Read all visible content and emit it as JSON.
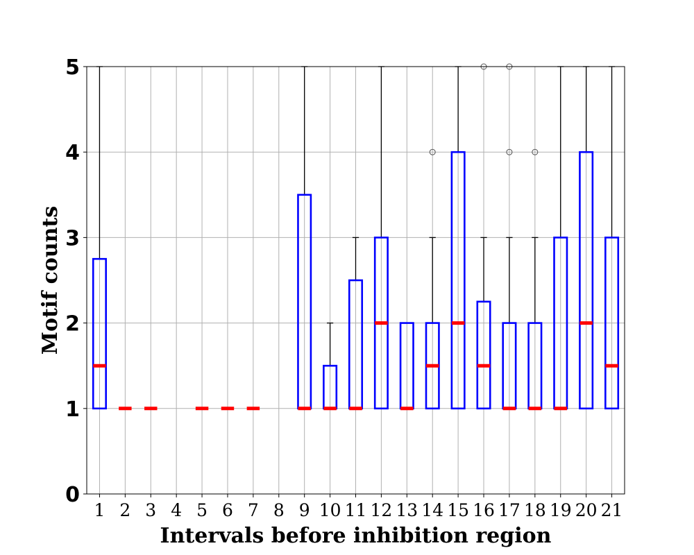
{
  "chart_data": {
    "type": "boxplot",
    "title": "",
    "xlabel": "Intervals before inhibition region",
    "ylabel": "Motif counts",
    "ylim": [
      0,
      5
    ],
    "yticks": [
      0,
      1,
      2,
      3,
      4,
      5
    ],
    "grid": true,
    "categories": [
      "1",
      "2",
      "3",
      "4",
      "5",
      "6",
      "7",
      "8",
      "9",
      "10",
      "11",
      "12",
      "13",
      "14",
      "15",
      "16",
      "17",
      "18",
      "19",
      "20",
      "21"
    ],
    "boxes": [
      {
        "category": "1",
        "q1": 1,
        "median": 1.5,
        "q3": 2.75,
        "whisker_low": 1,
        "whisker_high": 5,
        "outliers": []
      },
      {
        "category": "2",
        "q1": 1,
        "median": 1,
        "q3": 1,
        "whisker_low": 1,
        "whisker_high": 1,
        "outliers": []
      },
      {
        "category": "3",
        "q1": 1,
        "median": 1,
        "q3": 1,
        "whisker_low": 1,
        "whisker_high": 1,
        "outliers": []
      },
      {
        "category": "4"
      },
      {
        "category": "5",
        "q1": 1,
        "median": 1,
        "q3": 1,
        "whisker_low": 1,
        "whisker_high": 1,
        "outliers": []
      },
      {
        "category": "6",
        "q1": 1,
        "median": 1,
        "q3": 1,
        "whisker_low": 1,
        "whisker_high": 1,
        "outliers": []
      },
      {
        "category": "7",
        "q1": 1,
        "median": 1,
        "q3": 1,
        "whisker_low": 1,
        "whisker_high": 1,
        "outliers": []
      },
      {
        "category": "8"
      },
      {
        "category": "9",
        "q1": 1,
        "median": 1,
        "q3": 3.5,
        "whisker_low": 1,
        "whisker_high": 5,
        "outliers": []
      },
      {
        "category": "10",
        "q1": 1,
        "median": 1,
        "q3": 1.5,
        "whisker_low": 1,
        "whisker_high": 2,
        "outliers": []
      },
      {
        "category": "11",
        "q1": 1,
        "median": 1,
        "q3": 2.5,
        "whisker_low": 1,
        "whisker_high": 3,
        "outliers": []
      },
      {
        "category": "12",
        "q1": 1,
        "median": 2,
        "q3": 3,
        "whisker_low": 1,
        "whisker_high": 5,
        "outliers": []
      },
      {
        "category": "13",
        "q1": 1,
        "median": 1,
        "q3": 2,
        "whisker_low": 1,
        "whisker_high": 2,
        "outliers": []
      },
      {
        "category": "14",
        "q1": 1,
        "median": 1.5,
        "q3": 2,
        "whisker_low": 1,
        "whisker_high": 3,
        "outliers": [
          4
        ]
      },
      {
        "category": "15",
        "q1": 1,
        "median": 2,
        "q3": 4,
        "whisker_low": 1,
        "whisker_high": 5,
        "outliers": []
      },
      {
        "category": "16",
        "q1": 1,
        "median": 1.5,
        "q3": 2.25,
        "whisker_low": 1,
        "whisker_high": 3,
        "outliers": [
          5
        ]
      },
      {
        "category": "17",
        "q1": 1,
        "median": 1,
        "q3": 2,
        "whisker_low": 1,
        "whisker_high": 3,
        "outliers": [
          4,
          5
        ]
      },
      {
        "category": "18",
        "q1": 1,
        "median": 1,
        "q3": 2,
        "whisker_low": 1,
        "whisker_high": 3,
        "outliers": [
          4
        ]
      },
      {
        "category": "19",
        "q1": 1,
        "median": 1,
        "q3": 3,
        "whisker_low": 1,
        "whisker_high": 5,
        "outliers": []
      },
      {
        "category": "20",
        "q1": 1,
        "median": 2,
        "q3": 4,
        "whisker_low": 1,
        "whisker_high": 5,
        "outliers": []
      },
      {
        "category": "21",
        "q1": 1,
        "median": 1.5,
        "q3": 3,
        "whisker_low": 1,
        "whisker_high": 5,
        "outliers": []
      }
    ],
    "colors": {
      "box": "#0000ff",
      "median": "#ff0000",
      "whisker": "#000000",
      "grid": "#b0b0b0",
      "outlier": "#555555"
    }
  }
}
